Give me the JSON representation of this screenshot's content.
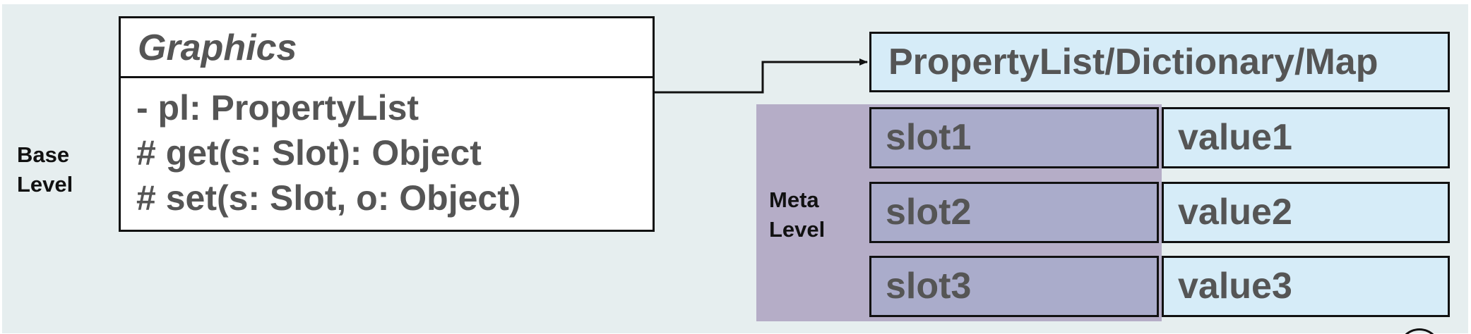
{
  "levels": {
    "base": [
      "Base",
      "Level"
    ],
    "meta": [
      "Meta",
      "Level"
    ]
  },
  "class_box": {
    "name": "Graphics",
    "members": [
      "- pl: PropertyList",
      "# get(s: Slot): Object",
      "# set(s: Slot, o: Object)"
    ]
  },
  "map_box": {
    "title": "PropertyList/Dictionary/Map"
  },
  "entries": [
    {
      "slot": "slot1",
      "value": "value1"
    },
    {
      "slot": "slot2",
      "value": "value2"
    },
    {
      "slot": "slot3",
      "value": "value3"
    }
  ],
  "colors": {
    "background": "#e6eeef",
    "map_fill": "#d6ecf8",
    "slot_fill": "#aaaccb",
    "meta_region": "#8c78a5",
    "text": "#555555"
  }
}
